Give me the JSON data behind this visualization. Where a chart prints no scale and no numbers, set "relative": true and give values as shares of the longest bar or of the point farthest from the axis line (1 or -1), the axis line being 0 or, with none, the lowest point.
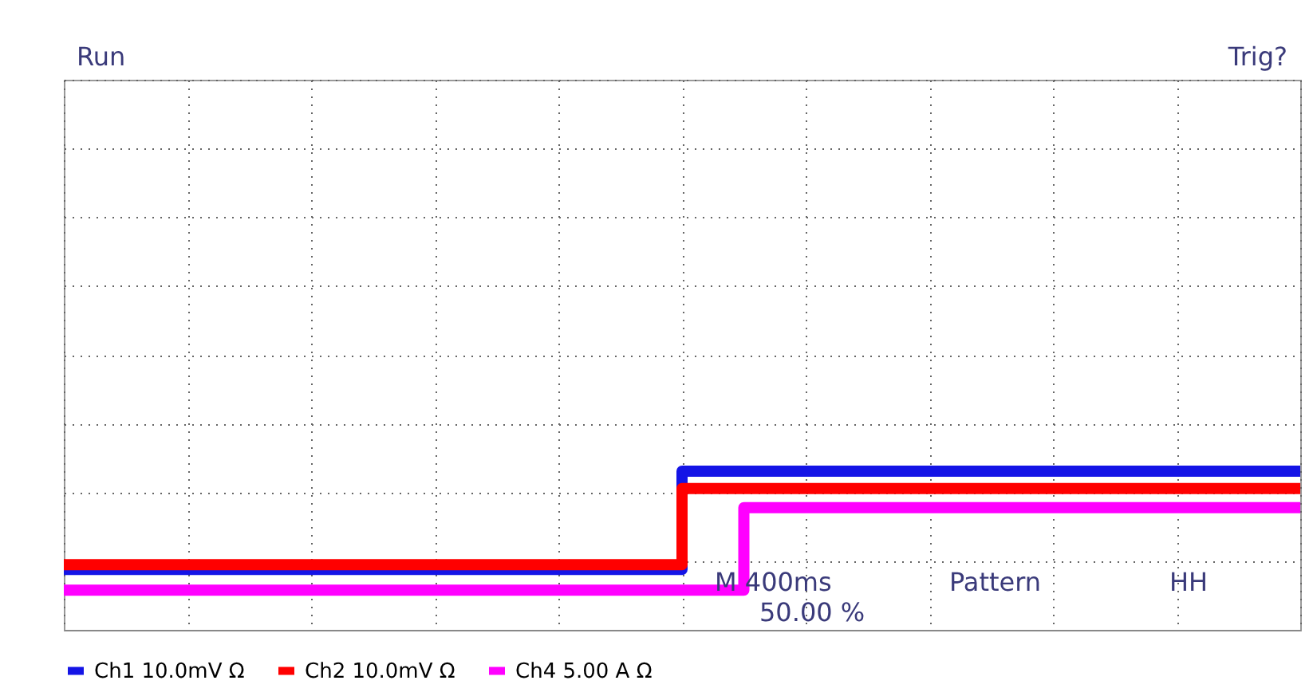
{
  "chart_data": {
    "type": "step",
    "relative": true,
    "grid": true,
    "legend": "bottom",
    "categories": [
      null,
      null,
      null,
      null,
      null,
      null,
      null,
      null,
      null,
      null,
      null,
      null,
      null,
      null,
      null,
      null,
      null,
      null,
      null,
      null,
      null,
      null,
      null,
      null,
      null,
      null,
      null,
      null,
      null,
      null,
      null,
      null,
      null,
      null,
      null,
      null,
      null,
      null,
      null,
      null,
      null
    ],
    "series": [
      {
        "name": "Ch1 10.0mV Ω",
        "color": "#1414e6",
        "values": [
          0.38,
          0.38,
          0.38,
          0.38,
          0.38,
          0.38,
          0.38,
          0.38,
          0.38,
          0.38,
          0.38,
          0.38,
          0.38,
          0.38,
          0.38,
          0.38,
          0.38,
          0.38,
          0.38,
          0.38,
          1,
          1,
          1,
          1,
          1,
          1,
          1,
          1,
          1,
          1,
          1,
          1,
          1,
          1,
          1,
          1,
          1,
          1,
          1,
          1,
          1
        ]
      },
      {
        "name": "Ch2 10.0mV Ω",
        "color": "#ff0000",
        "values": [
          0.41,
          0.41,
          0.41,
          0.41,
          0.41,
          0.41,
          0.41,
          0.41,
          0.41,
          0.41,
          0.41,
          0.41,
          0.41,
          0.41,
          0.41,
          0.41,
          0.41,
          0.41,
          0.41,
          0.41,
          0.89,
          0.89,
          0.89,
          0.89,
          0.89,
          0.89,
          0.89,
          0.89,
          0.89,
          0.89,
          0.89,
          0.89,
          0.89,
          0.89,
          0.89,
          0.89,
          0.89,
          0.89,
          0.89,
          0.89,
          0.89
        ]
      },
      {
        "name": "Ch4 5.00 A Ω",
        "color": "#ff00ff",
        "values": [
          0.25,
          0.25,
          0.25,
          0.25,
          0.25,
          0.25,
          0.25,
          0.25,
          0.25,
          0.25,
          0.25,
          0.25,
          0.25,
          0.25,
          0.25,
          0.25,
          0.25,
          0.25,
          0.25,
          0.25,
          0.25,
          0.25,
          0.77,
          0.77,
          0.77,
          0.77,
          0.77,
          0.77,
          0.77,
          0.77,
          0.77,
          0.77,
          0.77,
          0.77,
          0.77,
          0.77,
          0.77,
          0.77,
          0.77,
          0.77,
          0.77
        ]
      }
    ],
    "annotations": [
      "Run",
      "Trig?",
      "M 400ms",
      "Pattern",
      "HH",
      "50.00 %"
    ]
  }
}
